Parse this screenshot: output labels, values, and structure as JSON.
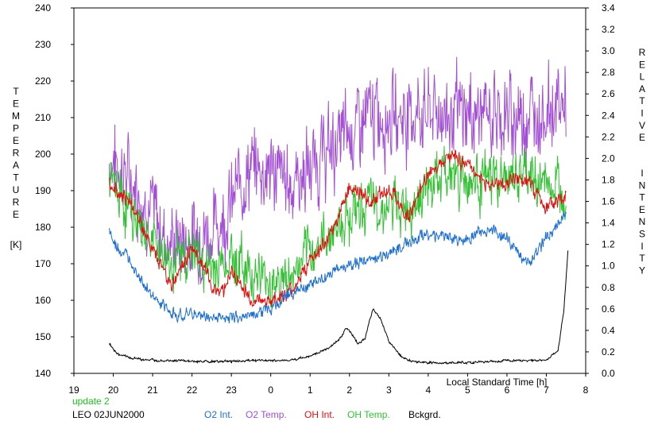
{
  "chart_data": {
    "type": "line",
    "left_axis": {
      "label_letters": [
        "T",
        "E",
        "M",
        "P",
        "E",
        "R",
        "A",
        "T",
        "U",
        "R",
        "E"
      ],
      "unit": "[K]",
      "ylim": [
        140,
        240
      ],
      "ticks": [
        "140",
        "150",
        "160",
        "170",
        "180",
        "190",
        "200",
        "210",
        "220",
        "230",
        "240"
      ]
    },
    "right_axis": {
      "label_word1": [
        "R",
        "E",
        "L",
        "A",
        "T",
        "I",
        "V",
        "E"
      ],
      "label_word2": [
        "I",
        "N",
        "T",
        "E",
        "N",
        "S",
        "I",
        "T",
        "Y"
      ],
      "ylim": [
        0.0,
        3.4
      ],
      "ticks": [
        "0.0",
        "0.2",
        "0.4",
        "0.6",
        "0.8",
        "1.0",
        "1.2",
        "1.4",
        "1.6",
        "1.8",
        "2.0",
        "2.2",
        "2.4",
        "2.6",
        "2.8",
        "3.0",
        "3.2",
        "3.4"
      ]
    },
    "x_axis": {
      "label": "Local Standard Time [h]",
      "ticks": [
        "19",
        "20",
        "21",
        "22",
        "23",
        "0",
        "1",
        "2",
        "3",
        "4",
        "5",
        "6",
        "7",
        "8"
      ],
      "range_hours": [
        19,
        32
      ]
    },
    "update_note": "update 2",
    "site_date": "LEO 02JUN2000",
    "legend": [
      {
        "label": "O2 Int.",
        "color": "#1f6fd0"
      },
      {
        "label": "O2 Temp.",
        "color": "#a24fd6"
      },
      {
        "label": "OH Int.",
        "color": "#e01010"
      },
      {
        "label": "OH Temp.",
        "color": "#33c133"
      },
      {
        "label": "Bckgrd.",
        "color": "#000000"
      }
    ],
    "series": [
      {
        "name": "O2 Temp.",
        "axis": "left",
        "color": "#a24fd6",
        "x": [
          19.9,
          20.0,
          20.5,
          21.0,
          21.3,
          21.5,
          22.0,
          22.5,
          23.0,
          23.2,
          23.5,
          24.0,
          24.5,
          25.0,
          25.5,
          26.0,
          26.5,
          27.0,
          27.5,
          28.0,
          28.5,
          29.0,
          29.5,
          30.0,
          30.5,
          31.0,
          31.5
        ],
        "y": [
          197,
          199,
          192,
          184,
          178,
          176,
          177,
          179,
          186,
          192,
          196,
          196,
          192,
          196,
          201,
          206,
          210,
          211,
          211,
          212,
          211,
          211,
          211,
          210,
          211,
          212,
          214
        ],
        "noise": 8
      },
      {
        "name": "OH Temp.",
        "axis": "left",
        "color": "#33c133",
        "x": [
          19.9,
          20.0,
          20.5,
          21.0,
          21.5,
          22.0,
          22.3,
          22.5,
          23.0,
          23.5,
          24.0,
          24.5,
          25.0,
          25.5,
          26.0,
          26.5,
          27.0,
          27.5,
          28.0,
          28.5,
          29.0,
          29.5,
          30.0,
          30.5,
          31.0,
          31.5
        ],
        "y": [
          192,
          191,
          183,
          176,
          170,
          174,
          170,
          168,
          172,
          168,
          165,
          166,
          173,
          178,
          184,
          186,
          185,
          186,
          191,
          195,
          193,
          193,
          193,
          194,
          192,
          191
        ],
        "noise": 5
      },
      {
        "name": "OH Int.",
        "axis": "right",
        "color": "#e01010",
        "x": [
          19.9,
          20.0,
          20.5,
          21.0,
          21.5,
          22.0,
          22.3,
          22.5,
          22.8,
          23.0,
          23.5,
          24.0,
          24.5,
          25.0,
          25.5,
          26.0,
          26.5,
          27.0,
          27.5,
          28.0,
          28.5,
          29.0,
          29.5,
          30.0,
          30.5,
          31.0,
          31.5
        ],
        "y": [
          1.78,
          1.75,
          1.55,
          1.15,
          0.82,
          1.18,
          1.0,
          0.8,
          0.78,
          0.95,
          0.68,
          0.68,
          0.75,
          1.05,
          1.25,
          1.75,
          1.6,
          1.72,
          1.45,
          1.85,
          2.05,
          1.95,
          1.75,
          1.78,
          1.8,
          1.55,
          1.65
        ],
        "noise": 0.05
      },
      {
        "name": "O2 Int.",
        "axis": "right",
        "color": "#1f6fd0",
        "x": [
          19.9,
          20.0,
          20.5,
          21.0,
          21.5,
          22.0,
          22.5,
          23.0,
          23.5,
          24.0,
          24.5,
          25.0,
          25.5,
          26.0,
          26.5,
          27.0,
          27.5,
          28.0,
          28.5,
          29.0,
          29.5,
          30.0,
          30.5,
          31.0,
          31.5
        ],
        "y": [
          1.35,
          1.2,
          1.02,
          0.7,
          0.55,
          0.55,
          0.52,
          0.52,
          0.55,
          0.6,
          0.75,
          0.82,
          0.92,
          1.0,
          1.05,
          1.12,
          1.22,
          1.3,
          1.25,
          1.25,
          1.35,
          1.25,
          1.02,
          1.25,
          1.5
        ],
        "noise": 0.04
      },
      {
        "name": "Bckgrd.",
        "axis": "right",
        "color": "#000000",
        "x": [
          19.9,
          20.1,
          20.5,
          21.0,
          21.5,
          22.0,
          22.5,
          23.0,
          23.5,
          24.0,
          24.5,
          25.0,
          25.5,
          25.8,
          25.9,
          26.0,
          26.2,
          26.4,
          26.5,
          26.6,
          26.8,
          27.0,
          27.3,
          27.5,
          28.0,
          28.5,
          29.0,
          29.5,
          30.0,
          30.5,
          31.0,
          31.3,
          31.45,
          31.55
        ],
        "y": [
          0.28,
          0.18,
          0.14,
          0.12,
          0.12,
          0.11,
          0.11,
          0.11,
          0.12,
          0.12,
          0.12,
          0.16,
          0.24,
          0.34,
          0.42,
          0.4,
          0.28,
          0.32,
          0.48,
          0.6,
          0.5,
          0.3,
          0.16,
          0.12,
          0.1,
          0.1,
          0.1,
          0.11,
          0.12,
          0.12,
          0.12,
          0.22,
          0.6,
          1.15
        ],
        "noise": 0.008
      }
    ]
  }
}
